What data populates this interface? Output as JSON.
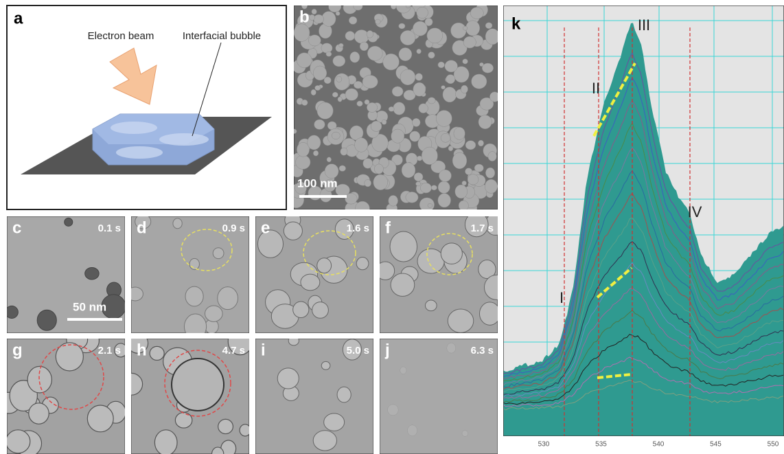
{
  "panels": {
    "a": {
      "label": "a",
      "beam": "Electron beam",
      "bubble": "Interfacial bubble"
    },
    "b": {
      "label": "b",
      "scale_bar": "100 nm"
    },
    "c": {
      "label": "c",
      "time": "0.1 s",
      "scale_bar": "50 nm"
    },
    "d": {
      "label": "d",
      "time": "0.9 s"
    },
    "e": {
      "label": "e",
      "time": "1.6 s"
    },
    "f": {
      "label": "f",
      "time": "1.7 s"
    },
    "g": {
      "label": "g",
      "time": "2.1 s"
    },
    "h": {
      "label": "h",
      "time": "4.7 s"
    },
    "i": {
      "label": "i",
      "time": "5.0 s"
    },
    "j": {
      "label": "j",
      "time": "6.3 s"
    },
    "k": {
      "label": "k",
      "peaks": [
        "I",
        "II",
        "III",
        "IV"
      ],
      "xticks": [
        530,
        535,
        540,
        545,
        550
      ]
    }
  }
}
